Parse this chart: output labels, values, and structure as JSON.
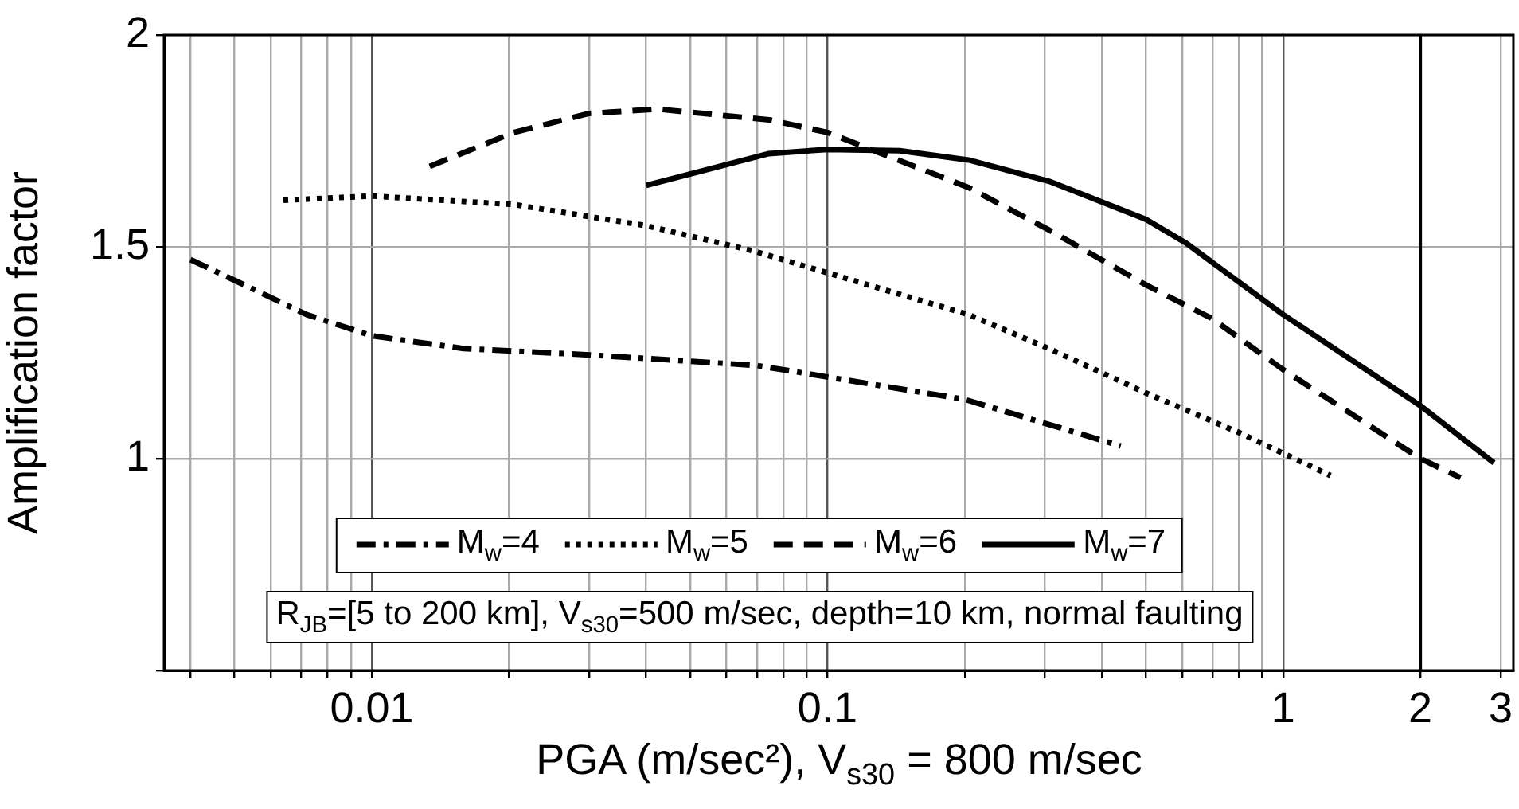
{
  "chart_data": {
    "type": "line",
    "xlabel": "PGA (m/sec²), V$_{s30}$ = 800 m/sec",
    "ylabel": "Amplification factor",
    "log": "x",
    "grid": true,
    "legend": "bottom",
    "marker": "none",
    "xlim": [
      0.0035,
      3.2
    ],
    "ylim": [
      0.5,
      2
    ],
    "xticks": [
      {
        "value": 0.004,
        "label": null
      },
      {
        "value": 0.005,
        "label": null
      },
      {
        "value": 0.006,
        "label": null
      },
      {
        "value": 0.007,
        "label": null
      },
      {
        "value": 0.008,
        "label": null
      },
      {
        "value": 0.009,
        "label": null
      },
      0.01,
      {
        "value": 0.02,
        "label": null
      },
      {
        "value": 0.03,
        "label": null
      },
      {
        "value": 0.04,
        "label": null
      },
      {
        "value": 0.05,
        "label": null
      },
      {
        "value": 0.06,
        "label": null
      },
      {
        "value": 0.07,
        "label": null
      },
      {
        "value": 0.08,
        "label": null
      },
      {
        "value": 0.09,
        "label": null
      },
      0.1,
      {
        "value": 0.2,
        "label": null
      },
      {
        "value": 0.3,
        "label": null
      },
      {
        "value": 0.4,
        "label": null
      },
      {
        "value": 0.5,
        "label": null
      },
      {
        "value": 0.6,
        "label": null
      },
      {
        "value": 0.7,
        "label": null
      },
      {
        "value": 0.8,
        "label": null
      },
      {
        "value": 0.9,
        "label": null
      },
      1,
      2,
      3
    ],
    "yticks": [
      {
        "value": 0.5,
        "label": null
      },
      1,
      1.5,
      2
    ],
    "ref_lines": [
      {
        "axis": "x",
        "value": 2,
        "color": "#000000",
        "line_style": "solid"
      }
    ],
    "annotations": [
      "R$_{JB}$=[5 to 200 km], V$_{s30}$=500 m/sec, depth=10 km, normal faulting"
    ],
    "series": [
      {
        "name": "M$_{w}$=4",
        "color": "#000000",
        "line_style": "dashdot",
        "x": [
          0.004,
          0.0055,
          0.0072,
          0.01,
          0.0159,
          0.03,
          0.07,
          0.2,
          0.44
        ],
        "values": [
          1.47,
          1.4,
          1.34,
          1.29,
          1.26,
          1.245,
          1.22,
          1.14,
          1.03
        ]
      },
      {
        "name": "M$_{w}$=5",
        "color": "#000000",
        "line_style": "dotted",
        "x": [
          0.0064,
          0.01,
          0.0205,
          0.04,
          0.069,
          0.204,
          0.306,
          0.5,
          0.806,
          1.27
        ],
        "values": [
          1.61,
          1.62,
          1.6,
          1.55,
          1.49,
          1.34,
          1.26,
          1.155,
          1.06,
          0.96
        ]
      },
      {
        "name": "M$_{w}$=6",
        "color": "#000000",
        "line_style": "dashed",
        "x": [
          0.0134,
          0.0205,
          0.03,
          0.0425,
          0.0744,
          0.1,
          0.204,
          0.306,
          0.5,
          0.7,
          1,
          2,
          2.45
        ],
        "values": [
          1.69,
          1.77,
          1.815,
          1.825,
          1.8,
          1.77,
          1.64,
          1.54,
          1.41,
          1.33,
          1.21,
          1.0,
          0.955
        ]
      },
      {
        "name": "M$_{w}$=7",
        "color": "#000000",
        "line_style": "solid",
        "x": [
          0.04,
          0.0744,
          0.1,
          0.144,
          0.204,
          0.306,
          0.5,
          0.61,
          1,
          2,
          2.9
        ],
        "values": [
          1.645,
          1.72,
          1.73,
          1.727,
          1.705,
          1.655,
          1.565,
          1.51,
          1.34,
          1.125,
          0.99
        ]
      }
    ]
  }
}
